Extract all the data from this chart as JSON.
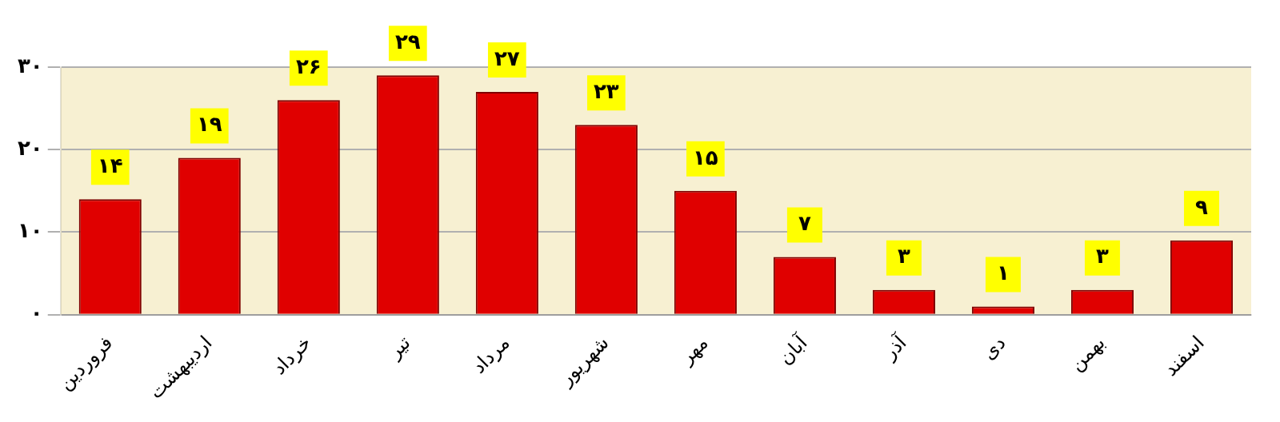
{
  "chart_data": {
    "type": "bar",
    "categories": [
      "فروردین",
      "اردیبهشت",
      "خرداد",
      "تیر",
      "مرداد",
      "شهریور",
      "مهر",
      "آبان",
      "آذر",
      "دی",
      "بهمن",
      "اسفند"
    ],
    "values": [
      14,
      19,
      26,
      29,
      27,
      23,
      15,
      7,
      3,
      1,
      3,
      9
    ],
    "value_labels": [
      "۱۴",
      "۱۹",
      "۲۶",
      "۲۹",
      "۲۷",
      "۲۳",
      "۱۵",
      "۷",
      "۳",
      "۱",
      "۳",
      "۹"
    ],
    "color": "#e00000",
    "ylim": [
      0,
      30
    ],
    "yticks": [
      {
        "value": 0,
        "label": "۰"
      },
      {
        "value": 10,
        "label": "۱۰"
      },
      {
        "value": 20,
        "label": "۲۰"
      },
      {
        "value": 30,
        "label": "۳۰"
      }
    ],
    "grid": "y",
    "legend": false
  }
}
